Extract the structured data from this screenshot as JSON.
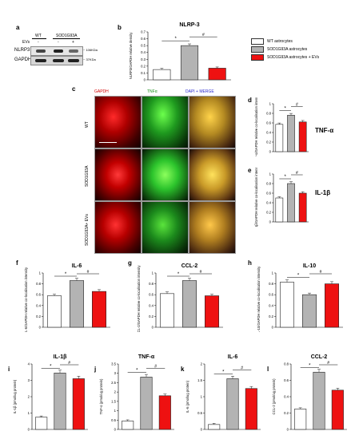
{
  "panel_labels": {
    "a": "a",
    "b": "b",
    "c": "c",
    "d": "d",
    "e": "e",
    "f": "f",
    "g": "g",
    "h": "h",
    "i": "i",
    "j": "j",
    "k": "k",
    "l": "l"
  },
  "wb": {
    "col_wt": "WT",
    "col_sod": "SOD1G93A",
    "evs_label": "EVs",
    "minus": "-",
    "plus": "+",
    "row_nlrp3": "NLRP3",
    "row_gapdh": "GAPDH",
    "kda_nlrp3": "~ 106KDa",
    "kda_gapdh": "~ 37KDa"
  },
  "legend": {
    "items": [
      {
        "label": "WT astrocytes",
        "color": "#ffffff"
      },
      {
        "label": "SOD1G93A astrocytes",
        "color": "#b3b3b3"
      },
      {
        "label": "SOD1G93A astrocytes + EVs",
        "color": "#ee1111"
      }
    ]
  },
  "micro": {
    "col_headers": [
      "GAPDH",
      "TNFα",
      "DAPI + MERGE"
    ],
    "row_labels": [
      "WT",
      "SOD1G93A",
      "SOD1G93A+ EVs"
    ]
  },
  "side_labels": {
    "d": "TNF-α",
    "e": "IL-1β"
  },
  "colors": {
    "wt": "#ffffff",
    "sod": "#b3b3b3",
    "ev": "#ee1111"
  },
  "chart_data": [
    {
      "id": "b",
      "type": "bar",
      "title": "NLRP-3",
      "ylabel": "NLRP3/GAPDH relative density",
      "ylim": [
        0,
        0.7
      ],
      "ticks": [
        "0",
        "0.1",
        "0.2",
        "0.3",
        "0.4",
        "0.5",
        "0.6",
        "0.7"
      ],
      "values": [
        0.15,
        0.5,
        0.17
      ],
      "stars": [
        "*",
        "#"
      ]
    },
    {
      "id": "d",
      "type": "bar",
      "title": "",
      "ylabel": "TNF-α/GAPDH relative co-localisation intensity",
      "ylim": [
        0,
        1
      ],
      "ticks": [
        "0",
        "0.2",
        "0.4",
        "0.6",
        "0.8",
        "1"
      ],
      "values": [
        0.57,
        0.76,
        0.62
      ],
      "stars": [
        "*",
        "#"
      ]
    },
    {
      "id": "e",
      "type": "bar",
      "title": "",
      "ylabel": "IL_1β/GAPDH relative co-localisation intensity",
      "ylim": [
        0,
        1
      ],
      "ticks": [
        "0",
        "0.2",
        "0.4",
        "0.6",
        "0.8",
        "1"
      ],
      "values": [
        0.5,
        0.8,
        0.6
      ],
      "stars": [
        "*",
        "#"
      ]
    },
    {
      "id": "f",
      "type": "bar",
      "title": "IL-6",
      "ylabel": "IL-6/GAPDH relative co-localisation intensity",
      "ylim": [
        0,
        1
      ],
      "ticks": [
        "0",
        "0.2",
        "0.4",
        "0.6",
        "0.8",
        "1"
      ],
      "values": [
        0.58,
        0.86,
        0.66
      ],
      "stars": [
        "*",
        "#"
      ]
    },
    {
      "id": "g",
      "type": "bar",
      "title": "CCL-2",
      "ylabel": "CCL-2/GAPDH relative co-localisation intensity",
      "ylim": [
        0,
        1
      ],
      "ticks": [
        "0",
        "0.2",
        "0.4",
        "0.6",
        "0.8",
        "1"
      ],
      "values": [
        0.62,
        0.86,
        0.58
      ],
      "stars": [
        "*",
        "#"
      ]
    },
    {
      "id": "h",
      "type": "bar",
      "title": "IL-10",
      "ylabel": "IL-10/GAPDH relative co-localisation intensity",
      "ylim": [
        0,
        1
      ],
      "ticks": [
        "0",
        "0.2",
        "0.4",
        "0.6",
        "0.8",
        "1"
      ],
      "values": [
        0.83,
        0.6,
        0.8
      ],
      "stars": [
        "*",
        "#"
      ]
    },
    {
      "id": "i",
      "type": "bar",
      "title": "IL-1β",
      "ylabel": "IL-1β (pmol/ug protein)",
      "ylim": [
        0,
        4
      ],
      "ticks": [
        "0",
        "1",
        "2",
        "3",
        "4"
      ],
      "values": [
        0.75,
        3.45,
        3.1
      ],
      "stars": [
        "*",
        "#"
      ]
    },
    {
      "id": "j",
      "type": "bar",
      "title": "TNF-α",
      "ylabel": "TNF-α (pmol/ug protein)",
      "ylim": [
        0,
        3.5
      ],
      "ticks": [
        "0",
        "0.5",
        "1",
        "1.5",
        "2",
        "2.5",
        "3",
        "3.5"
      ],
      "values": [
        0.45,
        2.8,
        1.8
      ],
      "stars": [
        "*",
        "#"
      ]
    },
    {
      "id": "k",
      "type": "bar",
      "title": "IL-6",
      "ylabel": "IL-6 (pmol/ug protein)",
      "ylim": [
        0,
        2
      ],
      "ticks": [
        "0",
        "0.5",
        "1",
        "1.5",
        "2"
      ],
      "values": [
        0.15,
        1.55,
        1.25
      ],
      "stars": [
        "*",
        "#"
      ]
    },
    {
      "id": "l",
      "type": "bar",
      "title": "CCL-2",
      "ylabel": "CCL-2 (pmol/ug protein)",
      "ylim": [
        0,
        0.8
      ],
      "ticks": [
        "0",
        "0.2",
        "0.4",
        "0.6",
        "0.8"
      ],
      "values": [
        0.25,
        0.7,
        0.48
      ],
      "stars": [
        "*",
        "#"
      ]
    }
  ]
}
